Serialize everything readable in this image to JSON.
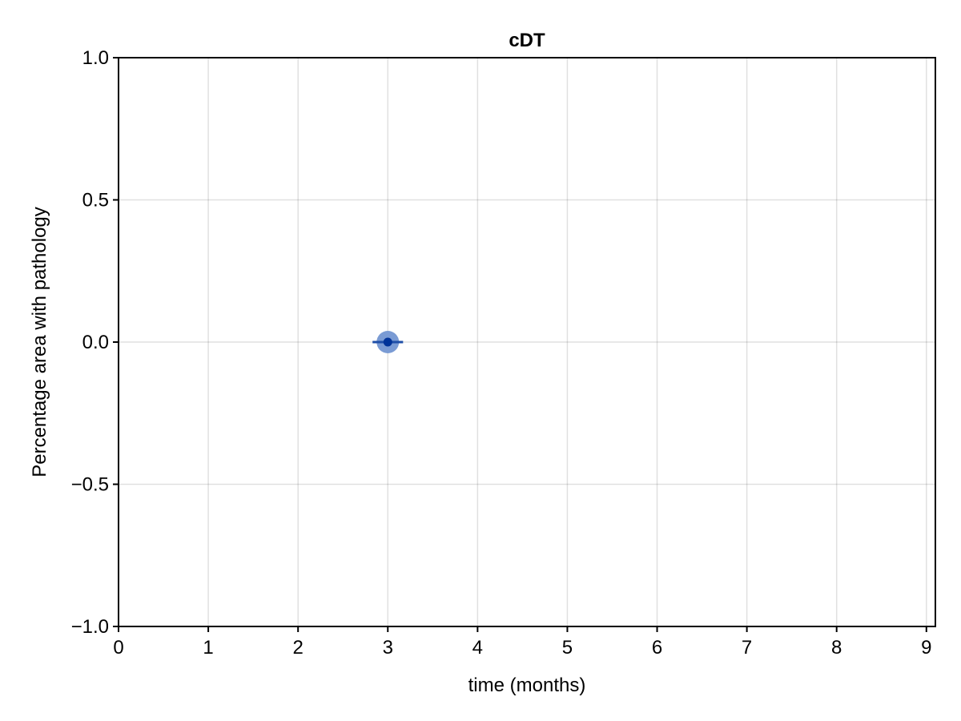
{
  "chart_data": {
    "type": "scatter",
    "title": "cDT",
    "xlabel": "time (months)",
    "ylabel": "Percentage area with pathology",
    "xlim": [
      0,
      9.1
    ],
    "ylim": [
      -1.0,
      1.0
    ],
    "x_ticks": [
      0,
      1,
      2,
      3,
      4,
      5,
      6,
      7,
      8,
      9
    ],
    "x_tick_labels": [
      "0",
      "1",
      "2",
      "3",
      "4",
      "5",
      "6",
      "7",
      "8",
      "9"
    ],
    "y_ticks": [
      -1.0,
      -0.5,
      0.0,
      0.5,
      1.0
    ],
    "y_tick_labels": [
      "−1.0",
      "−0.5",
      "0.0",
      "0.5",
      "1.0"
    ],
    "grid": true,
    "series": [
      {
        "points": [
          {
            "x": 3,
            "y": 0.0,
            "x_error": 0.17
          }
        ],
        "marker_color": "#003399",
        "halo_color": "#7a9bd4",
        "errorbar_color": "#1f4fa8"
      }
    ]
  }
}
